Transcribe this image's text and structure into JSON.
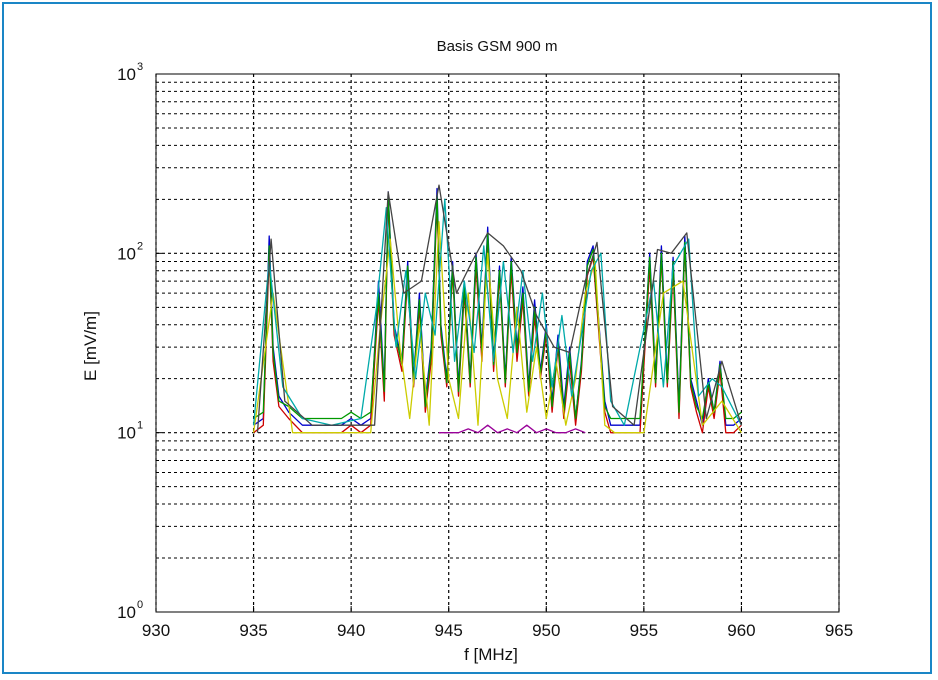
{
  "chart_data": {
    "type": "line",
    "title": "Basis GSM 900 m",
    "xlabel": "f [MHz]",
    "ylabel": "E [mV/m]",
    "xlim": [
      930,
      965
    ],
    "ylim": [
      1,
      1000
    ],
    "yscale": "log",
    "x_ticks": [
      930,
      935,
      940,
      945,
      950,
      955,
      960,
      965
    ],
    "y_ticks": [
      {
        "base": "10",
        "exp": "0"
      },
      {
        "base": "10",
        "exp": "1"
      },
      {
        "base": "10",
        "exp": "2"
      },
      {
        "base": "10",
        "exp": "3"
      }
    ],
    "grid": true,
    "legend": "none",
    "series": [
      {
        "color": "#0000cc",
        "x": [
          935.0,
          935.5,
          935.8,
          936.0,
          936.3,
          936.8,
          937.5,
          938.5,
          939.5,
          940.0,
          940.5,
          941.0,
          941.4,
          941.7,
          941.9,
          942.2,
          942.6,
          942.9,
          943.2,
          943.5,
          943.8,
          944.1,
          944.4,
          944.6,
          944.9,
          945.2,
          945.5,
          945.8,
          946.1,
          946.4,
          946.7,
          947.0,
          947.3,
          947.6,
          947.9,
          948.2,
          948.5,
          948.8,
          949.1,
          949.4,
          949.7,
          950.0,
          950.3,
          950.6,
          950.9,
          951.2,
          951.5,
          951.8,
          952.1,
          952.4,
          952.7,
          953.0,
          953.3,
          953.7,
          954.2,
          954.8,
          955.3,
          955.6,
          955.9,
          956.2,
          956.5,
          956.8,
          957.1,
          957.4,
          957.7,
          958.0,
          958.3,
          958.6,
          958.9,
          959.2,
          959.6,
          960.0
        ],
        "y": [
          11,
          12,
          125,
          30,
          16,
          13,
          11,
          11,
          11,
          12,
          11,
          12,
          70,
          18,
          220,
          40,
          25,
          90,
          20,
          60,
          15,
          30,
          230,
          40,
          20,
          90,
          18,
          70,
          20,
          100,
          30,
          140,
          25,
          85,
          20,
          95,
          30,
          65,
          18,
          55,
          22,
          40,
          15,
          35,
          14,
          30,
          12,
          25,
          90,
          110,
          40,
          15,
          11,
          11,
          11,
          11,
          100,
          20,
          110,
          20,
          95,
          14,
          125,
          20,
          15,
          11,
          20,
          13,
          25,
          11,
          11,
          12
        ]
      },
      {
        "color": "#cc0000",
        "x": [
          935.0,
          935.5,
          935.8,
          936.0,
          936.3,
          936.8,
          937.5,
          938.5,
          939.5,
          940.0,
          940.5,
          941.0,
          941.4,
          941.7,
          941.9,
          942.2,
          942.6,
          942.9,
          943.2,
          943.5,
          943.8,
          944.1,
          944.4,
          944.6,
          944.9,
          945.2,
          945.5,
          945.8,
          946.1,
          946.4,
          946.7,
          947.0,
          947.3,
          947.6,
          947.9,
          948.2,
          948.5,
          948.8,
          949.1,
          949.4,
          949.7,
          950.0,
          950.3,
          950.6,
          950.9,
          951.2,
          951.5,
          951.8,
          952.1,
          952.4,
          952.7,
          953.0,
          953.3,
          953.7,
          954.2,
          954.8,
          955.3,
          955.6,
          955.9,
          956.2,
          956.5,
          956.8,
          957.1,
          957.4,
          957.7,
          958.0,
          958.3,
          958.6,
          958.9,
          959.2,
          959.6,
          960.0
        ],
        "y": [
          10,
          11,
          100,
          25,
          14,
          12,
          10,
          10,
          10,
          11,
          10,
          11,
          55,
          15,
          200,
          35,
          22,
          75,
          18,
          50,
          13,
          25,
          190,
          35,
          18,
          80,
          16,
          60,
          18,
          85,
          25,
          120,
          22,
          75,
          18,
          80,
          25,
          55,
          16,
          45,
          20,
          35,
          13,
          30,
          12,
          25,
          11,
          22,
          75,
          95,
          35,
          13,
          10,
          10,
          10,
          10,
          85,
          18,
          95,
          18,
          80,
          12,
          110,
          18,
          13,
          10,
          18,
          12,
          22,
          10,
          10,
          11
        ]
      },
      {
        "color": "#009900",
        "x": [
          935.0,
          935.5,
          935.8,
          936.0,
          936.3,
          936.8,
          937.5,
          938.5,
          939.5,
          940.0,
          940.5,
          941.0,
          941.4,
          941.7,
          941.9,
          942.2,
          942.6,
          942.9,
          943.2,
          943.5,
          943.8,
          944.1,
          944.4,
          944.6,
          944.9,
          945.2,
          945.5,
          945.8,
          946.1,
          946.4,
          946.7,
          947.0,
          947.3,
          947.6,
          947.9,
          948.2,
          948.5,
          948.8,
          949.1,
          949.4,
          949.7,
          950.0,
          950.3,
          950.6,
          950.9,
          951.2,
          951.5,
          951.8,
          952.1,
          952.4,
          952.7,
          953.0,
          953.3,
          953.7,
          954.2,
          954.8,
          955.3,
          955.6,
          955.9,
          956.2,
          956.5,
          956.8,
          957.1,
          957.4,
          957.7,
          958.0,
          958.3,
          958.6,
          958.9,
          959.2,
          959.6,
          960.0
        ],
        "y": [
          12,
          13,
          110,
          28,
          15,
          14,
          12,
          12,
          12,
          13,
          12,
          13,
          60,
          17,
          210,
          38,
          24,
          85,
          19,
          55,
          14,
          28,
          210,
          38,
          19,
          85,
          17,
          65,
          19,
          95,
          28,
          130,
          24,
          80,
          19,
          90,
          28,
          60,
          17,
          50,
          21,
          38,
          14,
          32,
          13,
          28,
          12,
          24,
          85,
          105,
          38,
          14,
          12,
          12,
          12,
          12,
          95,
          19,
          100,
          19,
          90,
          13,
          115,
          19,
          14,
          12,
          19,
          13,
          24,
          12,
          12,
          13
        ]
      },
      {
        "color": "#cccc00",
        "x": [
          935.0,
          936.0,
          937.0,
          938.0,
          939.0,
          940.0,
          941.0,
          941.5,
          942.0,
          942.5,
          943.0,
          943.5,
          944.0,
          944.5,
          945.0,
          945.5,
          946.0,
          946.5,
          947.0,
          947.5,
          948.0,
          948.5,
          949.0,
          949.5,
          950.0,
          950.5,
          951.0,
          951.5,
          952.0,
          952.5,
          953.0,
          953.5,
          954.0,
          955.0,
          956.0,
          957.0,
          958.0,
          959.0,
          960.0
        ],
        "y": [
          10,
          60,
          10,
          10,
          10,
          10,
          10,
          40,
          120,
          30,
          12,
          40,
          11,
          150,
          20,
          12,
          60,
          11,
          100,
          20,
          12,
          50,
          13,
          30,
          12,
          25,
          11,
          20,
          60,
          90,
          11,
          10,
          10,
          10,
          60,
          70,
          11,
          15,
          10
        ]
      },
      {
        "color": "#00aaaa",
        "x": [
          935.0,
          935.8,
          936.5,
          937.5,
          939.0,
          940.5,
          941.3,
          941.8,
          942.3,
          942.8,
          943.3,
          943.8,
          944.3,
          944.8,
          945.3,
          945.8,
          946.3,
          946.8,
          947.3,
          947.8,
          948.3,
          948.8,
          949.3,
          949.8,
          950.3,
          950.8,
          951.3,
          951.8,
          952.3,
          952.8,
          953.3,
          954.0,
          955.5,
          956.0,
          956.5,
          957.3,
          957.8,
          958.5,
          959.0,
          960.0
        ],
        "y": [
          11,
          90,
          18,
          12,
          11,
          12,
          50,
          180,
          30,
          80,
          20,
          60,
          35,
          200,
          25,
          70,
          28,
          110,
          25,
          90,
          28,
          80,
          25,
          60,
          18,
          45,
          16,
          35,
          80,
          100,
          15,
          11,
          70,
          18,
          85,
          120,
          16,
          20,
          18,
          11
        ]
      },
      {
        "color": "#990099",
        "x": [
          944.5,
          945.0,
          945.5,
          946.0,
          946.5,
          947.0,
          947.5,
          948.0,
          948.5,
          949.0,
          949.5,
          950.0,
          950.5,
          951.0,
          951.5,
          952.0
        ],
        "y": [
          10,
          10,
          10,
          10.5,
          10,
          11,
          10,
          10.5,
          10,
          11,
          10,
          10.5,
          10,
          10,
          10.5,
          10
        ]
      },
      {
        "color": "#444444",
        "x": [
          935.2,
          935.9,
          936.6,
          938.0,
          940.2,
          941.2,
          941.9,
          942.7,
          943.6,
          944.5,
          945.4,
          946.2,
          947.0,
          947.8,
          948.7,
          949.5,
          950.4,
          951.2,
          952.0,
          952.6,
          953.4,
          954.5,
          955.7,
          956.4,
          957.2,
          958.2,
          959.0,
          960.0
        ],
        "y": [
          10,
          120,
          15,
          11,
          11,
          11,
          220,
          60,
          70,
          240,
          60,
          90,
          130,
          110,
          80,
          45,
          30,
          28,
          70,
          115,
          14,
          11,
          105,
          100,
          130,
          12,
          25,
          11
        ]
      }
    ]
  }
}
